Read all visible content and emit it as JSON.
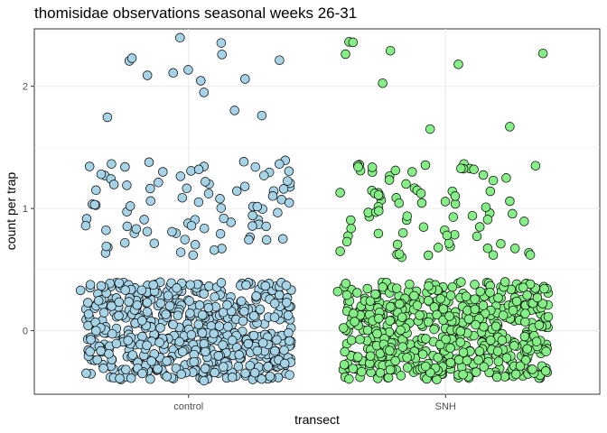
{
  "chart_data": {
    "type": "scatter",
    "title": "thomisidae observations seasonal weeks 26-31",
    "xlabel": "transect",
    "ylabel": "count per trap",
    "categories": [
      "control",
      "SNH"
    ],
    "ylim": [
      -0.52,
      2.47
    ],
    "yticks": [
      0,
      1,
      2
    ],
    "jitter": {
      "width": 0.4,
      "height": 0.4
    },
    "grid": true,
    "series": [
      {
        "category": "control",
        "color": "#a6d3e6",
        "counts": {
          "0": 560,
          "1": 80,
          "2": 9
        },
        "points": [
          {
            "x": -0.42,
            "y": 0.33
          },
          {
            "x": -0.36,
            "y": 0.0
          },
          {
            "x": -0.27,
            "y": 0.39
          },
          {
            "x": -0.18,
            "y": -0.35
          },
          {
            "x": -0.06,
            "y": 0.05
          },
          {
            "x": 0.06,
            "y": -0.41
          },
          {
            "x": 0.15,
            "y": 0.21
          },
          {
            "x": 0.29,
            "y": -0.1
          },
          {
            "x": 0.38,
            "y": 0.37
          },
          {
            "x": -0.4,
            "y": 0.86
          },
          {
            "x": -0.36,
            "y": 1.15
          },
          {
            "x": -0.32,
            "y": 0.69
          },
          {
            "x": -0.24,
            "y": 1.19
          },
          {
            "x": -0.1,
            "y": 1.3
          },
          {
            "x": 0.04,
            "y": 1.32
          },
          {
            "x": 0.1,
            "y": 0.66
          },
          {
            "x": 0.26,
            "y": 1.34
          },
          {
            "x": 0.37,
            "y": 1.16
          },
          {
            "x": -0.22,
            "y": 2.23
          },
          {
            "x": -0.16,
            "y": 2.09
          },
          {
            "x": -0.06,
            "y": 2.11
          },
          {
            "x": 0.06,
            "y": 1.95
          },
          {
            "x": 0.13,
            "y": 2.26
          },
          {
            "x": 0.22,
            "y": 2.06
          }
        ]
      },
      {
        "category": "SNH",
        "color": "#86ee86",
        "counts": {
          "0": 560,
          "1": 72,
          "2": 5
        },
        "points": [
          {
            "x": -0.42,
            "y": 0.32
          },
          {
            "x": -0.36,
            "y": -0.31
          },
          {
            "x": -0.26,
            "y": 0.1
          },
          {
            "x": -0.14,
            "y": 0.38
          },
          {
            "x": -0.03,
            "y": -0.22
          },
          {
            "x": 0.08,
            "y": 0.28
          },
          {
            "x": 0.2,
            "y": -0.38
          },
          {
            "x": 0.31,
            "y": 0.14
          },
          {
            "x": 0.39,
            "y": -0.33
          },
          {
            "x": -0.41,
            "y": 0.65
          },
          {
            "x": -0.41,
            "y": 1.13
          },
          {
            "x": -0.34,
            "y": 1.34
          },
          {
            "x": -0.26,
            "y": 0.98
          },
          {
            "x": -0.13,
            "y": 1.3
          },
          {
            "x": 0.03,
            "y": 0.93
          },
          {
            "x": 0.11,
            "y": 1.32
          },
          {
            "x": 0.25,
            "y": 1.06
          },
          {
            "x": 0.35,
            "y": 1.35
          },
          {
            "x": -0.36,
            "y": 2.36
          },
          {
            "x": -0.06,
            "y": 1.65
          },
          {
            "x": 0.05,
            "y": 2.18
          },
          {
            "x": 0.25,
            "y": 1.67
          }
        ]
      }
    ]
  }
}
